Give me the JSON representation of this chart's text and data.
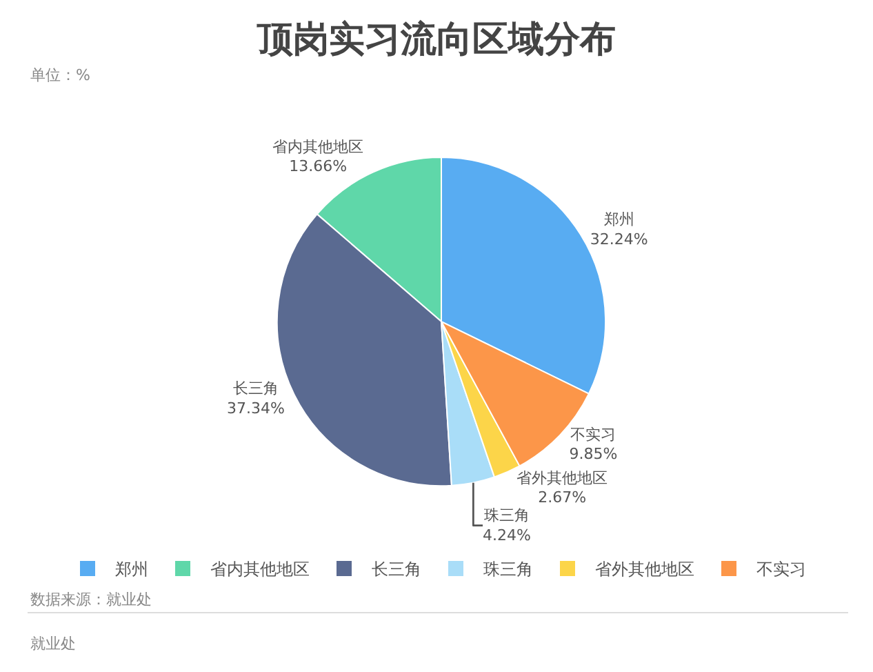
{
  "chart_data": {
    "type": "pie",
    "title": "顶岗实习流向区域分布",
    "subtitle": "单位：%",
    "categories": [
      "郑州",
      "省内其他地区",
      "长三角",
      "珠三角",
      "省外其他地区",
      "不实习"
    ],
    "values": [
      32.24,
      13.66,
      37.34,
      4.24,
      2.67,
      9.85
    ],
    "value_labels": [
      "32.24%",
      "13.66%",
      "37.34%",
      "4.24%",
      "2.67%",
      "9.85%"
    ],
    "colors": [
      "#58acf2",
      "#5fd7a9",
      "#5a6a91",
      "#a9ddf8",
      "#fcd549",
      "#fc9649"
    ],
    "legend": "bottom",
    "annotations": [
      "数据来源：就业处",
      "就业处"
    ]
  }
}
